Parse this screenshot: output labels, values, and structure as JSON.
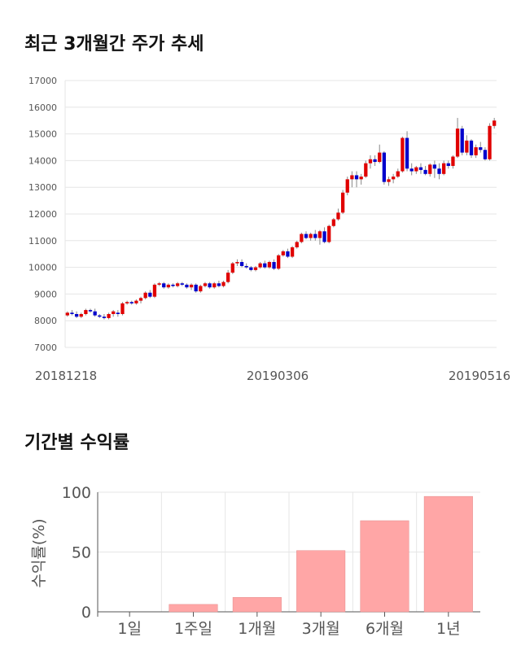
{
  "sections": {
    "price_title": "최근 3개월간 주가 추세",
    "returns_title": "기간별 수익률"
  },
  "chart_data": [
    {
      "type": "candlestick",
      "title": "최근 3개월간 주가 추세",
      "ylim": [
        7000,
        17000
      ],
      "yticks": [
        "17000",
        "16000",
        "15000",
        "14000",
        "13000",
        "12000",
        "11000",
        "10000",
        "9000",
        "8000",
        "7000"
      ],
      "xticks": [
        "20181218",
        "20190306",
        "20190516"
      ],
      "grid": true,
      "colors": {
        "up": "#e00000",
        "down": "#0000cc",
        "grid": "#e6e6e6"
      },
      "candles": [
        [
          8200,
          8350,
          8150,
          8300
        ],
        [
          8300,
          8400,
          8200,
          8250
        ],
        [
          8250,
          8350,
          8100,
          8150
        ],
        [
          8150,
          8300,
          8100,
          8250
        ],
        [
          8250,
          8450,
          8200,
          8400
        ],
        [
          8400,
          8450,
          8300,
          8350
        ],
        [
          8350,
          8450,
          8150,
          8200
        ],
        [
          8200,
          8250,
          8100,
          8150
        ],
        [
          8150,
          8250,
          8050,
          8100
        ],
        [
          8100,
          8300,
          8050,
          8250
        ],
        [
          8250,
          8400,
          8150,
          8350
        ],
        [
          8300,
          8400,
          8150,
          8250
        ],
        [
          8250,
          8700,
          8200,
          8650
        ],
        [
          8650,
          8750,
          8600,
          8700
        ],
        [
          8700,
          8750,
          8600,
          8650
        ],
        [
          8650,
          8800,
          8600,
          8750
        ],
        [
          8750,
          8900,
          8650,
          8850
        ],
        [
          8850,
          9100,
          8800,
          9050
        ],
        [
          9050,
          9150,
          8850,
          8900
        ],
        [
          8900,
          9400,
          8850,
          9350
        ],
        [
          9350,
          9450,
          9300,
          9400
        ],
        [
          9400,
          9450,
          9200,
          9250
        ],
        [
          9250,
          9400,
          9200,
          9350
        ],
        [
          9350,
          9400,
          9250,
          9300
        ],
        [
          9300,
          9450,
          9250,
          9400
        ],
        [
          9400,
          9450,
          9300,
          9350
        ],
        [
          9350,
          9400,
          9200,
          9250
        ],
        [
          9250,
          9400,
          9150,
          9350
        ],
        [
          9350,
          9400,
          9050,
          9100
        ],
        [
          9100,
          9350,
          9050,
          9300
        ],
        [
          9300,
          9450,
          9250,
          9400
        ],
        [
          9400,
          9450,
          9200,
          9250
        ],
        [
          9250,
          9450,
          9200,
          9400
        ],
        [
          9400,
          9500,
          9250,
          9300
        ],
        [
          9300,
          9500,
          9250,
          9450
        ],
        [
          9450,
          9900,
          9400,
          9800
        ],
        [
          9800,
          10200,
          9750,
          10150
        ],
        [
          10150,
          10300,
          10050,
          10200
        ],
        [
          10200,
          10300,
          10000,
          10050
        ],
        [
          10050,
          10150,
          9950,
          10000
        ],
        [
          10000,
          10050,
          9850,
          9900
        ],
        [
          9900,
          10050,
          9850,
          10000
        ],
        [
          10000,
          10200,
          9950,
          10150
        ],
        [
          10150,
          10250,
          9950,
          10000
        ],
        [
          10000,
          10250,
          9950,
          10200
        ],
        [
          10200,
          10300,
          9900,
          9950
        ],
        [
          9950,
          10500,
          9900,
          10450
        ],
        [
          10450,
          10650,
          10400,
          10600
        ],
        [
          10600,
          10700,
          10350,
          10400
        ],
        [
          10400,
          10800,
          10350,
          10750
        ],
        [
          10750,
          11000,
          10700,
          10950
        ],
        [
          10950,
          11300,
          10900,
          11250
        ],
        [
          11250,
          11350,
          11050,
          11100
        ],
        [
          11100,
          11300,
          11000,
          11250
        ],
        [
          11250,
          11400,
          11000,
          11100
        ],
        [
          11100,
          11400,
          10850,
          11350
        ],
        [
          11350,
          11500,
          10900,
          10950
        ],
        [
          10950,
          11600,
          10900,
          11550
        ],
        [
          11550,
          11850,
          11500,
          11800
        ],
        [
          11800,
          12200,
          11750,
          12050
        ],
        [
          12050,
          12900,
          12000,
          12800
        ],
        [
          12800,
          13400,
          12700,
          13300
        ],
        [
          13300,
          13600,
          13000,
          13450
        ],
        [
          13450,
          13600,
          13000,
          13300
        ],
        [
          13300,
          13500,
          13100,
          13400
        ],
        [
          13400,
          14000,
          13350,
          13900
        ],
        [
          13900,
          14200,
          13700,
          14050
        ],
        [
          14050,
          14200,
          13800,
          13950
        ],
        [
          13950,
          14600,
          13900,
          14300
        ],
        [
          14300,
          14350,
          13100,
          13200
        ],
        [
          13200,
          13400,
          13050,
          13300
        ],
        [
          13300,
          13500,
          13150,
          13400
        ],
        [
          13400,
          13700,
          13350,
          13600
        ],
        [
          13600,
          14900,
          13550,
          14850
        ],
        [
          14850,
          15100,
          13600,
          13700
        ],
        [
          13700,
          13900,
          13450,
          13600
        ],
        [
          13600,
          13800,
          13500,
          13750
        ],
        [
          13750,
          13900,
          13500,
          13650
        ],
        [
          13650,
          13800,
          13450,
          13500
        ],
        [
          13500,
          13900,
          13400,
          13850
        ],
        [
          13850,
          14000,
          13350,
          13700
        ],
        [
          13700,
          13900,
          13300,
          13500
        ],
        [
          13500,
          14000,
          13450,
          13900
        ],
        [
          13900,
          14000,
          13700,
          13800
        ],
        [
          13800,
          14200,
          13700,
          14150
        ],
        [
          14150,
          15600,
          14100,
          15200
        ],
        [
          15200,
          15300,
          14200,
          14300
        ],
        [
          14300,
          14950,
          14200,
          14750
        ],
        [
          14750,
          14800,
          14100,
          14200
        ],
        [
          14200,
          14600,
          14100,
          14500
        ],
        [
          14500,
          14700,
          14300,
          14400
        ],
        [
          14400,
          14500,
          14000,
          14050
        ],
        [
          14050,
          15400,
          14000,
          15300
        ],
        [
          15300,
          15600,
          15200,
          15500
        ]
      ]
    },
    {
      "type": "bar",
      "title": "기간별 수익률",
      "categories": [
        "1일",
        "1주일",
        "1개월",
        "3개월",
        "6개월",
        "1년"
      ],
      "values": [
        0,
        6.2,
        12.1,
        51.2,
        76.2,
        96.5
      ],
      "ylabel": "수익률(%)",
      "ylim": [
        0,
        100
      ],
      "yticks": [
        "100",
        "50",
        "0"
      ],
      "colors": {
        "bar": "#ffa6a6",
        "bar_edge": "#e48a8a",
        "grid": "#e6e6e6",
        "axis": "#555555"
      }
    }
  ]
}
